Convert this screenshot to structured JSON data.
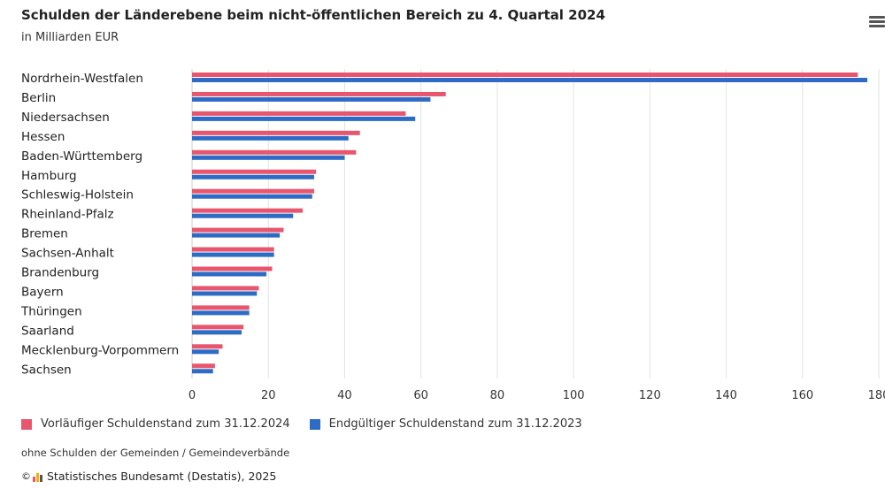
{
  "header": {
    "title": "Schulden der Länderebene beim nicht-öffentlichen Bereich zu 4. Quartal 2024",
    "subtitle": "in Milliarden EUR"
  },
  "chart_data": {
    "type": "bar",
    "orientation": "horizontal",
    "categories": [
      "Nordrhein-Westfalen",
      "Berlin",
      "Niedersachsen",
      "Hessen",
      "Baden-Württemberg",
      "Hamburg",
      "Schleswig-Holstein",
      "Rheinland-Pfalz",
      "Bremen",
      "Sachsen-Anhalt",
      "Brandenburg",
      "Bayern",
      "Thüringen",
      "Saarland",
      "Mecklenburg-Vorpommern",
      "Sachsen"
    ],
    "series": [
      {
        "name": "Vorläufiger Schuldenstand zum 31.12.2024",
        "color": "#e8566e",
        "values": [
          174.5,
          66.5,
          56,
          44,
          43,
          32.5,
          32,
          29,
          24,
          21.5,
          21,
          17.5,
          15,
          13.5,
          8,
          6
        ]
      },
      {
        "name": "Endgültiger Schuldenstand zum 31.12.2023",
        "color": "#2e6bc4",
        "values": [
          177,
          62.5,
          58.5,
          41,
          40,
          32,
          31.5,
          26.5,
          23,
          21.5,
          19.5,
          17,
          15,
          13,
          7,
          5.5
        ]
      }
    ],
    "xticks": [
      0,
      20,
      40,
      60,
      80,
      100,
      120,
      140,
      160,
      180
    ],
    "xlim": [
      0,
      180
    ],
    "grid": true,
    "legend_position": "bottom-left"
  },
  "legend": {
    "items": [
      {
        "label": "Vorläufiger Schuldenstand zum 31.12.2024",
        "color": "#e8566e"
      },
      {
        "label": "Endgültiger Schuldenstand zum 31.12.2023",
        "color": "#2e6bc4"
      }
    ]
  },
  "footer": {
    "note": "ohne Schulden der Gemeinden / Gemeindeverbände",
    "source": "Statistisches Bundesamt (Destatis), 2025",
    "copyright_symbol": "©"
  },
  "icons": {
    "menu": "hamburger-menu-icon"
  }
}
